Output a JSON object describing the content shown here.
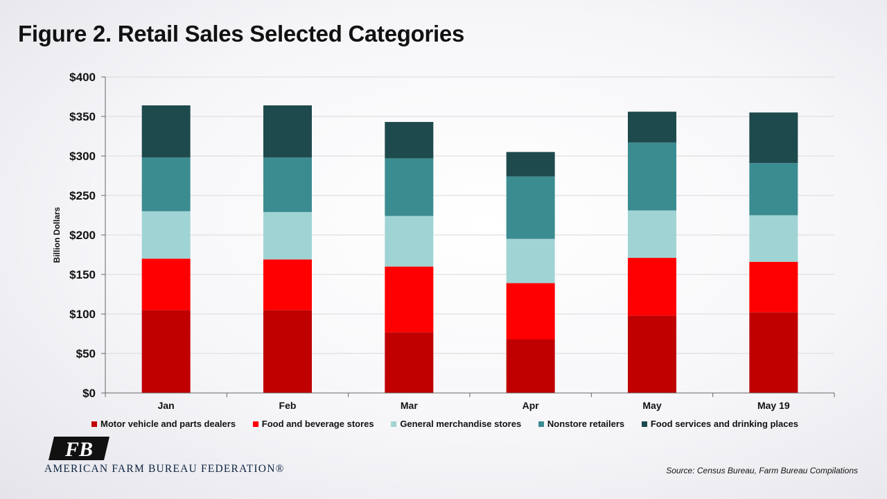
{
  "title": "Figure 2. Retail Sales Selected Categories",
  "chart_data": {
    "type": "bar",
    "stacked": true,
    "categories": [
      "Jan",
      "Feb",
      "Mar",
      "Apr",
      "May",
      "May 19"
    ],
    "series": [
      {
        "name": "Motor vehicle and parts dealers",
        "color": "#c00000",
        "values": [
          105,
          105,
          77,
          68,
          98,
          102
        ]
      },
      {
        "name": "Food and beverage stores",
        "color": "#ff0000",
        "values": [
          65,
          64,
          83,
          71,
          73,
          64
        ]
      },
      {
        "name": "General merchandise stores",
        "color": "#a0d4d4",
        "values": [
          60,
          60,
          64,
          56,
          60,
          59
        ]
      },
      {
        "name": "Nonstore retailers",
        "color": "#3b8c91",
        "values": [
          68,
          69,
          73,
          79,
          86,
          66
        ]
      },
      {
        "name": "Food services and drinking places",
        "color": "#1f4a4d",
        "values": [
          66,
          66,
          46,
          31,
          39,
          64
        ]
      }
    ],
    "yticks": [
      "$0",
      "$50",
      "$100",
      "$150",
      "$200",
      "$250",
      "$300",
      "$350",
      "$400"
    ],
    "ylim": [
      0,
      400
    ],
    "ytick_step": 50,
    "ylabel": "Billion Dollars",
    "xlabel": "",
    "grid": true,
    "legend_position": "bottom"
  },
  "source": "Source: Census Bureau, Farm Bureau Compilations",
  "logo": {
    "org_name": "AMERICAN FARM BUREAU FEDERATION®",
    "mark_letters": "FB",
    "mark_color": "#111111"
  }
}
